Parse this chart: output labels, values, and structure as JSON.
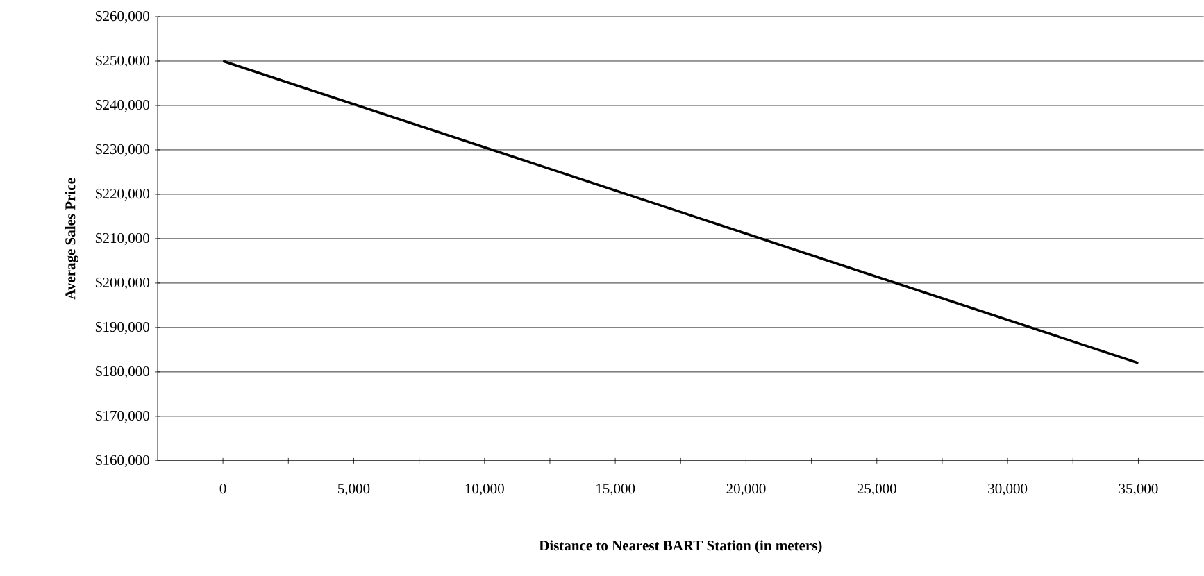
{
  "chart_data": {
    "type": "line",
    "xlabel": "Distance to Nearest BART Station (in meters)",
    "ylabel": "Average Sales Price",
    "x": [
      0,
      35000
    ],
    "series": [
      {
        "color": "#000000",
        "values": [
          250000,
          182000
        ]
      }
    ],
    "xlim": [
      -2500,
      37500
    ],
    "xticks": [
      0,
      {
        "value": 2500,
        "label": null
      },
      {
        "value": 5000,
        "label": "5,000"
      },
      {
        "value": 7500,
        "label": null
      },
      {
        "value": 10000,
        "label": "10,000"
      },
      {
        "value": 12500,
        "label": null
      },
      {
        "value": 15000,
        "label": "15,000"
      },
      {
        "value": 17500,
        "label": null
      },
      {
        "value": 20000,
        "label": "20,000"
      },
      {
        "value": 22500,
        "label": null
      },
      {
        "value": 25000,
        "label": "25,000"
      },
      {
        "value": 27500,
        "label": null
      },
      {
        "value": 30000,
        "label": "30,000"
      },
      {
        "value": 32500,
        "label": null
      },
      {
        "value": 35000,
        "label": "35,000"
      }
    ],
    "ylim": [
      160000,
      260000
    ],
    "yticks": [
      {
        "value": 160000,
        "label": "$160,000"
      },
      {
        "value": 170000,
        "label": "$170,000"
      },
      {
        "value": 180000,
        "label": "$180,000"
      },
      {
        "value": 190000,
        "label": "$190,000"
      },
      {
        "value": 200000,
        "label": "$200,000"
      },
      {
        "value": 210000,
        "label": "$210,000"
      },
      {
        "value": 220000,
        "label": "$220,000"
      },
      {
        "value": 230000,
        "label": "$230,000"
      },
      {
        "value": 240000,
        "label": "$240,000"
      },
      {
        "value": 250000,
        "label": "$250,000"
      },
      {
        "value": 260000,
        "label": "$260,000"
      }
    ],
    "grid": "y",
    "marker": "none",
    "line_style": "solid"
  }
}
